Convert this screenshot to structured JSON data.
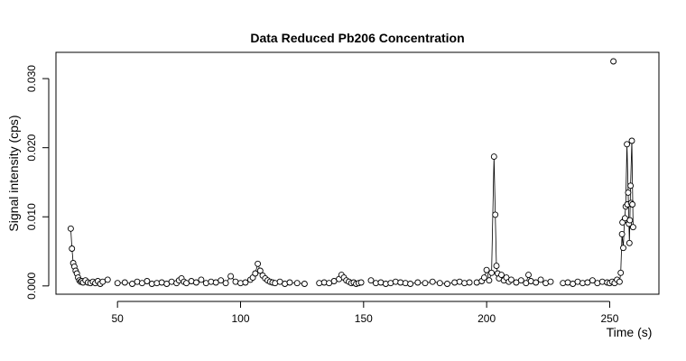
{
  "chart_data": {
    "type": "line",
    "title": "Data Reduced Pb206 Concentration",
    "xlabel": "Time (s)",
    "ylabel": "Signal intensity (cps)",
    "xlim": [
      25,
      270
    ],
    "ylim": [
      -0.0012,
      0.0338
    ],
    "x_ticks": [
      50,
      100,
      150,
      200,
      250
    ],
    "x_tick_labels": [
      "50",
      "100",
      "150",
      "200",
      "250"
    ],
    "y_ticks": [
      0,
      0.01,
      0.02,
      0.03
    ],
    "y_tick_labels": [
      "0.000",
      "0.010",
      "0.020",
      "0.030"
    ],
    "grid": false,
    "legend": "none",
    "line_color": "#000000",
    "marker": "open-circle",
    "series": [
      {
        "segments": [
          {
            "x": [
              31.0,
              31.5,
              32.0,
              32.5,
              33.0,
              33.5,
              34.0,
              34.5,
              35.0,
              35.5,
              36.0,
              37.0,
              38.0,
              39.0,
              40.0,
              41.0,
              42.0,
              43.0,
              44.0,
              46.0
            ],
            "y": [
              0.0083,
              0.0054,
              0.0033,
              0.0028,
              0.0022,
              0.0018,
              0.0012,
              0.0008,
              0.0006,
              0.0007,
              0.0005,
              0.0008,
              0.0005,
              0.0004,
              0.0006,
              0.0004,
              0.0007,
              0.0003,
              0.0006,
              0.0009
            ]
          },
          {
            "x": [
              50,
              53,
              56,
              58,
              60,
              62,
              64,
              66,
              68,
              70,
              72,
              74,
              75,
              76,
              77,
              78,
              80,
              82,
              84,
              86,
              88,
              90,
              92,
              94,
              96,
              98,
              100,
              102,
              104,
              105,
              106,
              107,
              108,
              109,
              110,
              111,
              112,
              113,
              114,
              116,
              118,
              120,
              123,
              126
            ],
            "y": [
              0.0004,
              0.0005,
              0.0003,
              0.0006,
              0.0004,
              0.0007,
              0.0003,
              0.0004,
              0.0005,
              0.0003,
              0.0006,
              0.0004,
              0.0008,
              0.0011,
              0.0006,
              0.0004,
              0.0007,
              0.0005,
              0.0009,
              0.0004,
              0.0006,
              0.0005,
              0.0008,
              0.0004,
              0.0014,
              0.0006,
              0.0004,
              0.0005,
              0.0009,
              0.0012,
              0.0018,
              0.0032,
              0.0022,
              0.0015,
              0.0011,
              0.0008,
              0.0006,
              0.0005,
              0.0004,
              0.0006,
              0.0003,
              0.0005,
              0.0004,
              0.0003
            ]
          },
          {
            "x": [
              132,
              134,
              136,
              138,
              140,
              141,
              142,
              143,
              144,
              145,
              146,
              147,
              148,
              149
            ],
            "y": [
              0.0004,
              0.0005,
              0.0004,
              0.0007,
              0.001,
              0.0016,
              0.0012,
              0.0008,
              0.0006,
              0.0004,
              0.0005,
              0.0003,
              0.0004,
              0.0005
            ]
          },
          {
            "x": [
              153,
              155,
              157,
              159,
              161,
              163,
              165,
              167,
              169,
              172,
              175,
              178,
              181,
              184,
              187,
              189,
              191,
              193
            ],
            "y": [
              0.0008,
              0.0004,
              0.0005,
              0.0003,
              0.0004,
              0.0006,
              0.0005,
              0.0004,
              0.0003,
              0.0005,
              0.0004,
              0.0006,
              0.0004,
              0.0003,
              0.0005,
              0.0006,
              0.0004,
              0.0005
            ]
          },
          {
            "x": [
              196,
              198,
              199,
              200,
              201,
              202,
              203,
              203.5,
              204,
              204.5,
              205,
              206,
              207,
              208,
              209,
              210,
              212,
              214,
              216,
              217,
              218,
              220,
              222,
              224,
              226
            ],
            "y": [
              0.0005,
              0.0007,
              0.0012,
              0.0023,
              0.0008,
              0.0019,
              0.0187,
              0.0103,
              0.0029,
              0.0018,
              0.0011,
              0.0016,
              0.0008,
              0.0012,
              0.0006,
              0.0009,
              0.0005,
              0.0008,
              0.0004,
              0.0016,
              0.0007,
              0.0005,
              0.0009,
              0.0004,
              0.0006
            ]
          },
          {
            "x": [
              231,
              233,
              235,
              237,
              239,
              241,
              243,
              245,
              247,
              249,
              250,
              251,
              252,
              253,
              254,
              254.5,
              255,
              255.5,
              256,
              256.5,
              257,
              257.5,
              258,
              258.5,
              259,
              259.5
            ],
            "y": [
              0.0004,
              0.0005,
              0.0003,
              0.0006,
              0.0004,
              0.0005,
              0.0008,
              0.0004,
              0.0006,
              0.0005,
              0.0004,
              0.0006,
              0.0004,
              0.0009,
              0.0006,
              0.0019,
              0.0075,
              0.0055,
              0.0095,
              0.0115,
              0.0205,
              0.0135,
              0.0062,
              0.0145,
              0.021,
              0.0085
            ]
          }
        ]
      }
    ],
    "extra_points": {
      "x": [
        251.5,
        255.2,
        256.2,
        257.2,
        257.8,
        258.2,
        258.7,
        259.2
      ],
      "y": [
        0.0325,
        0.0092,
        0.0098,
        0.0118,
        0.009,
        0.0095,
        0.012,
        0.0118
      ]
    }
  }
}
